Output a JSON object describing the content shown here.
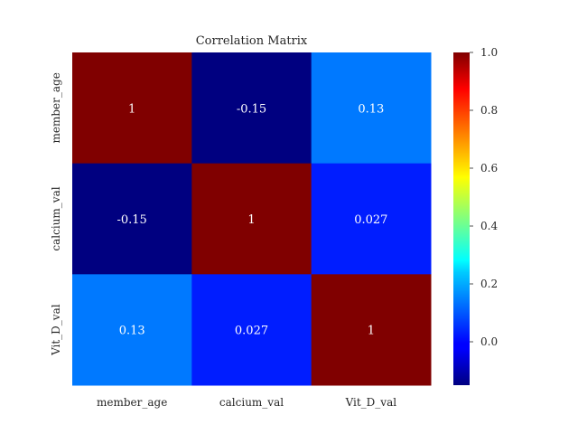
{
  "chart_data": {
    "type": "heatmap",
    "title": "Correlation Matrix",
    "xlabel": "",
    "ylabel": "",
    "rows": [
      "member_age",
      "calcium_val",
      "Vit_D_val"
    ],
    "columns": [
      "member_age",
      "calcium_val",
      "Vit_D_val"
    ],
    "values": [
      [
        1,
        -0.15,
        0.13
      ],
      [
        -0.15,
        1,
        0.027
      ],
      [
        0.13,
        0.027,
        1
      ]
    ],
    "value_labels": [
      [
        "1",
        "-0.15",
        "0.13"
      ],
      [
        "-0.15",
        "1",
        "0.027"
      ],
      [
        "0.13",
        "0.027",
        "1"
      ]
    ],
    "colormap": "jet",
    "color_range": [
      -0.15,
      1.0
    ],
    "colorbar_ticks": [
      0.0,
      0.2,
      0.4,
      0.6,
      0.8,
      1.0
    ],
    "colorbar_tick_labels": [
      "0.0",
      "0.2",
      "0.4",
      "0.6",
      "0.8",
      "1.0"
    ],
    "grid": false
  }
}
